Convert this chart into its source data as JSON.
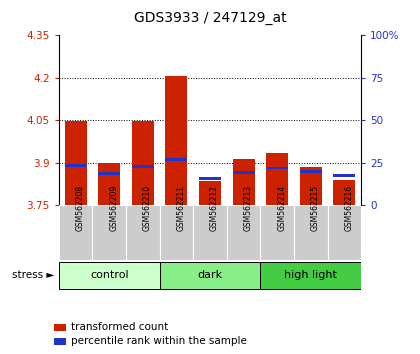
{
  "title": "GDS3933 / 247129_at",
  "samples": [
    "GSM562208",
    "GSM562209",
    "GSM562210",
    "GSM562211",
    "GSM562212",
    "GSM562213",
    "GSM562214",
    "GSM562215",
    "GSM562216"
  ],
  "bar_values": [
    4.047,
    3.9,
    4.049,
    4.205,
    3.835,
    3.912,
    3.933,
    3.885,
    3.84
  ],
  "blue_markers": [
    3.892,
    3.862,
    3.886,
    3.912,
    3.845,
    3.866,
    3.882,
    3.868,
    3.856
  ],
  "bar_color": "#cc2200",
  "blue_color": "#2233cc",
  "ymin": 3.75,
  "ymax": 4.35,
  "yticks": [
    3.75,
    3.9,
    4.05,
    4.2,
    4.35
  ],
  "ytick_labels": [
    "3.75",
    "3.9",
    "4.05",
    "4.2",
    "4.35"
  ],
  "right_yticks": [
    0,
    25,
    50,
    75,
    100
  ],
  "right_ytick_labels": [
    "0",
    "25",
    "50",
    "75",
    "100%"
  ],
  "groups": [
    {
      "label": "control",
      "color": "#ccffcc",
      "start": 0,
      "end": 2
    },
    {
      "label": "dark",
      "color": "#88ee88",
      "start": 3,
      "end": 5
    },
    {
      "label": "high light",
      "color": "#44cc44",
      "start": 6,
      "end": 8
    }
  ],
  "group_row_color": "#cccccc",
  "stress_label": "stress",
  "legend_items": [
    {
      "color": "#cc2200",
      "label": "transformed count"
    },
    {
      "color": "#2233cc",
      "label": "percentile rank within the sample"
    }
  ]
}
